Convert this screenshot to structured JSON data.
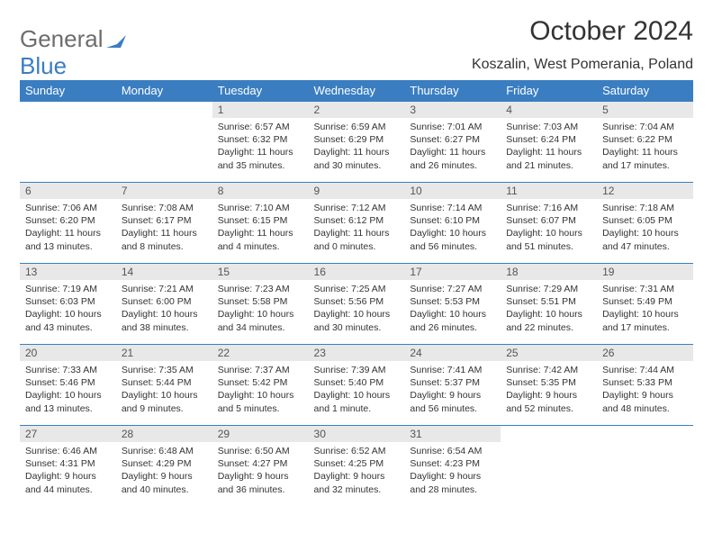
{
  "brand": {
    "part1": "General",
    "part2": "Blue"
  },
  "title": "October 2024",
  "location": "Koszalin, West Pomerania, Poland",
  "colors": {
    "header_bg": "#3a7ec1",
    "header_text": "#ffffff",
    "daynum_bg": "#e8e8e8",
    "border": "#3a7ec1",
    "logo_gray": "#6d6d6d",
    "logo_blue": "#3a7ec1",
    "body_text": "#333333",
    "page_bg": "#ffffff"
  },
  "typography": {
    "title_fontsize": 30,
    "subtitle_fontsize": 16,
    "logo_fontsize": 26,
    "weekday_fontsize": 13,
    "daynum_fontsize": 12,
    "cell_fontsize": 10.5
  },
  "weekdays": [
    "Sunday",
    "Monday",
    "Tuesday",
    "Wednesday",
    "Thursday",
    "Friday",
    "Saturday"
  ],
  "weeks": [
    [
      null,
      null,
      {
        "n": "1",
        "sunrise": "6:57 AM",
        "sunset": "6:32 PM",
        "daylight": "11 hours and 35 minutes."
      },
      {
        "n": "2",
        "sunrise": "6:59 AM",
        "sunset": "6:29 PM",
        "daylight": "11 hours and 30 minutes."
      },
      {
        "n": "3",
        "sunrise": "7:01 AM",
        "sunset": "6:27 PM",
        "daylight": "11 hours and 26 minutes."
      },
      {
        "n": "4",
        "sunrise": "7:03 AM",
        "sunset": "6:24 PM",
        "daylight": "11 hours and 21 minutes."
      },
      {
        "n": "5",
        "sunrise": "7:04 AM",
        "sunset": "6:22 PM",
        "daylight": "11 hours and 17 minutes."
      }
    ],
    [
      {
        "n": "6",
        "sunrise": "7:06 AM",
        "sunset": "6:20 PM",
        "daylight": "11 hours and 13 minutes."
      },
      {
        "n": "7",
        "sunrise": "7:08 AM",
        "sunset": "6:17 PM",
        "daylight": "11 hours and 8 minutes."
      },
      {
        "n": "8",
        "sunrise": "7:10 AM",
        "sunset": "6:15 PM",
        "daylight": "11 hours and 4 minutes."
      },
      {
        "n": "9",
        "sunrise": "7:12 AM",
        "sunset": "6:12 PM",
        "daylight": "11 hours and 0 minutes."
      },
      {
        "n": "10",
        "sunrise": "7:14 AM",
        "sunset": "6:10 PM",
        "daylight": "10 hours and 56 minutes."
      },
      {
        "n": "11",
        "sunrise": "7:16 AM",
        "sunset": "6:07 PM",
        "daylight": "10 hours and 51 minutes."
      },
      {
        "n": "12",
        "sunrise": "7:18 AM",
        "sunset": "6:05 PM",
        "daylight": "10 hours and 47 minutes."
      }
    ],
    [
      {
        "n": "13",
        "sunrise": "7:19 AM",
        "sunset": "6:03 PM",
        "daylight": "10 hours and 43 minutes."
      },
      {
        "n": "14",
        "sunrise": "7:21 AM",
        "sunset": "6:00 PM",
        "daylight": "10 hours and 38 minutes."
      },
      {
        "n": "15",
        "sunrise": "7:23 AM",
        "sunset": "5:58 PM",
        "daylight": "10 hours and 34 minutes."
      },
      {
        "n": "16",
        "sunrise": "7:25 AM",
        "sunset": "5:56 PM",
        "daylight": "10 hours and 30 minutes."
      },
      {
        "n": "17",
        "sunrise": "7:27 AM",
        "sunset": "5:53 PM",
        "daylight": "10 hours and 26 minutes."
      },
      {
        "n": "18",
        "sunrise": "7:29 AM",
        "sunset": "5:51 PM",
        "daylight": "10 hours and 22 minutes."
      },
      {
        "n": "19",
        "sunrise": "7:31 AM",
        "sunset": "5:49 PM",
        "daylight": "10 hours and 17 minutes."
      }
    ],
    [
      {
        "n": "20",
        "sunrise": "7:33 AM",
        "sunset": "5:46 PM",
        "daylight": "10 hours and 13 minutes."
      },
      {
        "n": "21",
        "sunrise": "7:35 AM",
        "sunset": "5:44 PM",
        "daylight": "10 hours and 9 minutes."
      },
      {
        "n": "22",
        "sunrise": "7:37 AM",
        "sunset": "5:42 PM",
        "daylight": "10 hours and 5 minutes."
      },
      {
        "n": "23",
        "sunrise": "7:39 AM",
        "sunset": "5:40 PM",
        "daylight": "10 hours and 1 minute."
      },
      {
        "n": "24",
        "sunrise": "7:41 AM",
        "sunset": "5:37 PM",
        "daylight": "9 hours and 56 minutes."
      },
      {
        "n": "25",
        "sunrise": "7:42 AM",
        "sunset": "5:35 PM",
        "daylight": "9 hours and 52 minutes."
      },
      {
        "n": "26",
        "sunrise": "7:44 AM",
        "sunset": "5:33 PM",
        "daylight": "9 hours and 48 minutes."
      }
    ],
    [
      {
        "n": "27",
        "sunrise": "6:46 AM",
        "sunset": "4:31 PM",
        "daylight": "9 hours and 44 minutes."
      },
      {
        "n": "28",
        "sunrise": "6:48 AM",
        "sunset": "4:29 PM",
        "daylight": "9 hours and 40 minutes."
      },
      {
        "n": "29",
        "sunrise": "6:50 AM",
        "sunset": "4:27 PM",
        "daylight": "9 hours and 36 minutes."
      },
      {
        "n": "30",
        "sunrise": "6:52 AM",
        "sunset": "4:25 PM",
        "daylight": "9 hours and 32 minutes."
      },
      {
        "n": "31",
        "sunrise": "6:54 AM",
        "sunset": "4:23 PM",
        "daylight": "9 hours and 28 minutes."
      },
      null,
      null
    ]
  ],
  "labels": {
    "sunrise": "Sunrise:",
    "sunset": "Sunset:",
    "daylight": "Daylight:"
  }
}
